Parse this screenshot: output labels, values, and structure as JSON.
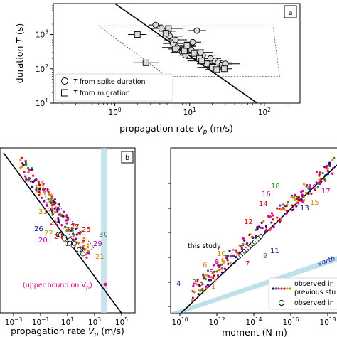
{
  "chart_data": [
    {
      "panel_label": "a",
      "type": "scatter",
      "xlabel": "propagation rate ",
      "xlabel_sym": "V",
      "xlabel_sub": "p",
      "xlabel_unit": " (m/s)",
      "ylabel": "duration ",
      "ylabel_sym": "T",
      "ylabel_unit": " (s)",
      "xscale": "log",
      "yscale": "log",
      "xlim": [
        0.15,
        300
      ],
      "ylim": [
        10,
        8000
      ],
      "xticks": [
        {
          "v": 1,
          "label": "10",
          "exp": "0"
        },
        {
          "v": 10,
          "label": "10",
          "exp": "1"
        },
        {
          "v": 100,
          "label": "10",
          "exp": "2"
        }
      ],
      "yticks": [
        {
          "v": 10,
          "label": "10",
          "exp": "1"
        },
        {
          "v": 100,
          "label": "10",
          "exp": "2"
        },
        {
          "v": 1000,
          "label": "10",
          "exp": "3"
        }
      ],
      "legend": [
        {
          "marker": "circle",
          "pre": "",
          "sym": "T",
          "post": " from spike duration"
        },
        {
          "marker": "square",
          "pre": "",
          "sym": "T",
          "post": " from migration"
        }
      ],
      "legend_position": "lower-left",
      "fit_line": [
        [
          1.0,
          8000
        ],
        [
          80,
          10
        ]
      ],
      "envelope": [
        [
          0.6,
          1800
        ],
        [
          130,
          1800
        ],
        [
          160,
          60
        ],
        [
          5,
          60
        ]
      ],
      "series": [
        {
          "marker": "circle",
          "points": [
            [
              3.5,
              1900
            ],
            [
              4.2,
              1500
            ],
            [
              5.1,
              1250
            ],
            [
              5.4,
              900
            ],
            [
              6.0,
              550
            ],
            [
              6.8,
              420
            ],
            [
              8.0,
              300
            ],
            [
              9.5,
              450
            ],
            [
              10.5,
              360
            ],
            [
              12.5,
              1300
            ],
            [
              15,
              250
            ],
            [
              19,
              200
            ],
            [
              22,
              170
            ],
            [
              14,
              300
            ],
            [
              11,
              600
            ],
            [
              24,
              150
            ],
            [
              27,
              130
            ],
            [
              30,
              140
            ],
            [
              6.5,
              700
            ],
            [
              8.8,
              250
            ]
          ]
        },
        {
          "marker": "square",
          "points": [
            [
              2.0,
              1000
            ],
            [
              5.2,
              1500
            ],
            [
              4.8,
              1100
            ],
            [
              6.4,
              380
            ],
            [
              8.5,
              330
            ],
            [
              11.5,
              280
            ],
            [
              13.5,
              200
            ],
            [
              17,
              140
            ],
            [
              20,
              110
            ],
            [
              23,
              95
            ],
            [
              29,
              100
            ],
            [
              2.6,
              150
            ],
            [
              9.2,
              480
            ],
            [
              14.5,
              170
            ]
          ]
        }
      ]
    },
    {
      "panel_label": "b",
      "type": "scatter",
      "xlabel": "propagation rate ",
      "xlabel_sym": "V",
      "xlabel_sub": "p",
      "xlabel_unit": " (m/s)",
      "xscale": "log",
      "yscale": "log",
      "xlim": [
        0.0001,
        1000000
      ],
      "xticks": [
        {
          "v": 0.001,
          "label": "10",
          "exp": "−3"
        },
        {
          "v": 0.1,
          "label": "10",
          "exp": "−1"
        },
        {
          "v": 10,
          "label": "10",
          "exp": "1"
        },
        {
          "v": 1000,
          "label": "10",
          "exp": "3"
        },
        {
          "v": 100000,
          "label": "10",
          "exp": "5"
        }
      ],
      "annotation": "(upper bound on V",
      "annotation_sub": "p",
      "annotation_close": ")",
      "labels": [
        {
          "text": "30",
          "color": "#2b8a2b"
        },
        {
          "text": "29",
          "color": "#b800b8"
        },
        {
          "text": "31",
          "color": "#cc8800"
        },
        {
          "text": "28",
          "color": "#d40000"
        },
        {
          "text": "26",
          "color": "#101080"
        },
        {
          "text": "22",
          "color": "#cc8800"
        },
        {
          "text": "20",
          "color": "#b800b8"
        },
        {
          "text": "24",
          "color": "#d40000"
        },
        {
          "text": "25",
          "color": "#d40000"
        },
        {
          "text": "21",
          "color": "#cc8800"
        },
        {
          "text": "27",
          "color": "#d40000"
        },
        {
          "text": "23",
          "color": "#2b8a2b"
        }
      ]
    },
    {
      "type": "scatter",
      "xlabel": "moment (N m)",
      "xscale": "log",
      "yscale": "log",
      "xlim": [
        10000000000,
        1e+20
      ],
      "xticks": [
        {
          "v": 10000000000,
          "label": "10",
          "exp": "10"
        },
        {
          "v": 1000000000000,
          "label": "10",
          "exp": "12"
        },
        {
          "v": 100000000000000,
          "label": "10",
          "exp": "14"
        },
        {
          "v": 10000000000000000,
          "label": "10",
          "exp": "16"
        },
        {
          "v": 1000000000000000000,
          "label": "10",
          "exp": "18"
        }
      ],
      "annotations": [
        {
          "text": "this study",
          "color": "#000000"
        },
        {
          "text": "earth",
          "color": "#2222aa"
        }
      ],
      "legend": [
        {
          "marker": "colored-dots",
          "label": "observed in"
        },
        {
          "marker": "colored-dots",
          "label": "previous stu"
        },
        {
          "marker": "open-circle",
          "label": "observed in"
        }
      ],
      "labels": [
        {
          "text": "18",
          "color": "#2b8a2b"
        },
        {
          "text": "19",
          "color": "#b800b8"
        },
        {
          "text": "17",
          "color": "#b800b8"
        },
        {
          "text": "16",
          "color": "#b800b8"
        },
        {
          "text": "14",
          "color": "#d40000"
        },
        {
          "text": "15",
          "color": "#cc8800"
        },
        {
          "text": "13",
          "color": "#101080"
        },
        {
          "text": "12",
          "color": "#d40000"
        },
        {
          "text": "11",
          "color": "#101080"
        },
        {
          "text": "10",
          "color": "#cc8800"
        },
        {
          "text": "9",
          "color": "#2b8a2b"
        },
        {
          "text": "8",
          "color": "#b800b8"
        },
        {
          "text": "7",
          "color": "#d40000"
        },
        {
          "text": "6",
          "color": "#cc8800"
        },
        {
          "text": "5",
          "color": "#b800b8"
        },
        {
          "text": "4",
          "color": "#101080"
        },
        {
          "text": "3",
          "color": "#2b8a2b"
        },
        {
          "text": "2",
          "color": "#d40000"
        },
        {
          "text": "1",
          "color": "#cc8800"
        }
      ]
    }
  ]
}
